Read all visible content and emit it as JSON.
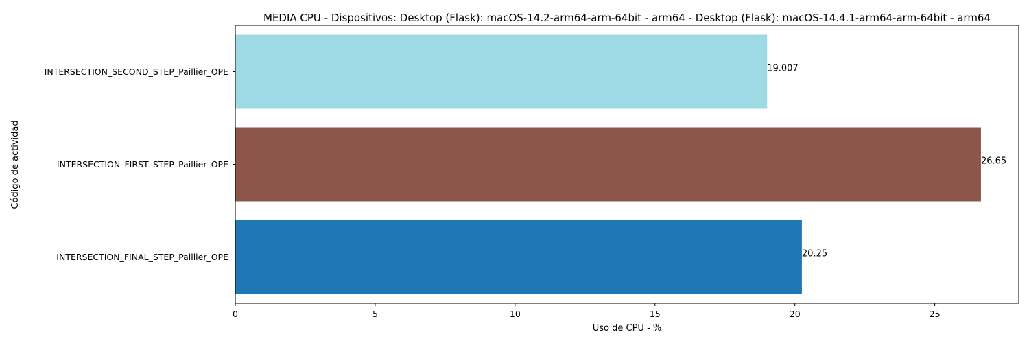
{
  "chart_data": {
    "type": "bar",
    "orientation": "horizontal",
    "title": "MEDIA CPU - Dispositivos: Desktop (Flask): macOS-14.2-arm64-arm-64bit - arm64 - Desktop (Flask): macOS-14.4.1-arm64-arm-64bit - arm64",
    "xlabel": "Uso de CPU - %",
    "ylabel": "Código de actividad",
    "xlim": [
      0,
      28
    ],
    "xticks": [
      0,
      5,
      10,
      15,
      20,
      25
    ],
    "grid": false,
    "bars": [
      {
        "category": "INTERSECTION_SECOND_STEP_Paillier_OPE",
        "value": 19.007,
        "label": "19.007",
        "color": "#9edae5"
      },
      {
        "category": "INTERSECTION_FIRST_STEP_Paillier_OPE",
        "value": 26.65,
        "label": "26.65",
        "color": "#8c564b"
      },
      {
        "category": "INTERSECTION_FINAL_STEP_Paillier_OPE",
        "value": 20.25,
        "label": "20.25",
        "color": "#1f77b4"
      }
    ]
  }
}
